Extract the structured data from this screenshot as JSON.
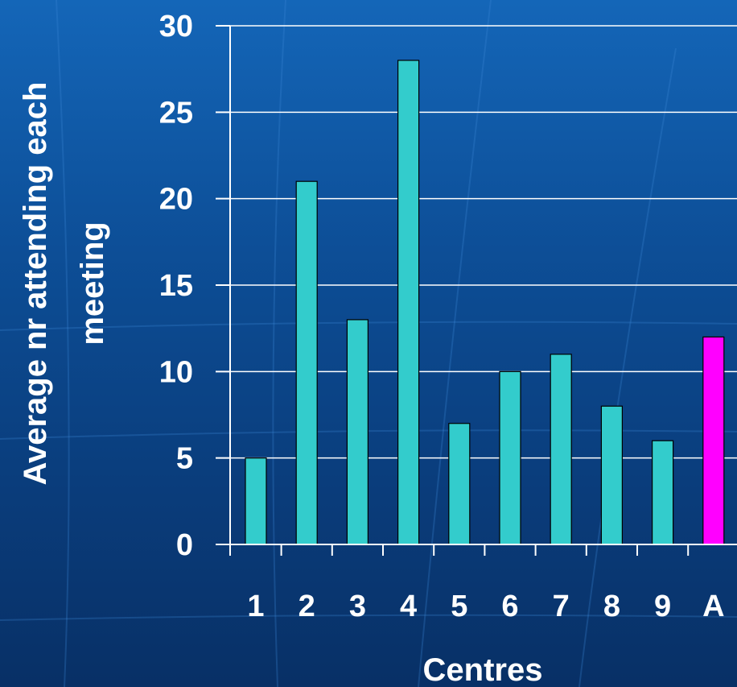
{
  "chart_data": {
    "type": "bar",
    "title": "",
    "xlabel": "Centres",
    "ylabel": [
      "Average nr attending each",
      "meeting"
    ],
    "categories": [
      "1",
      "2",
      "3",
      "4",
      "5",
      "6",
      "7",
      "8",
      "9",
      "A"
    ],
    "values": [
      5,
      21,
      13,
      28,
      7,
      10,
      11,
      8,
      6,
      12
    ],
    "bar_colors": [
      "#33cccc",
      "#33cccc",
      "#33cccc",
      "#33cccc",
      "#33cccc",
      "#33cccc",
      "#33cccc",
      "#33cccc",
      "#33cccc",
      "#ff00ff"
    ],
    "ylim": [
      0,
      30
    ],
    "yticks": [
      0,
      5,
      10,
      15,
      20,
      25,
      30
    ],
    "grid": true
  },
  "colors": {
    "bar": "#33cccc",
    "highlight_bar": "#ff00ff",
    "gridline": "#ffffff",
    "text": "#ffffff"
  }
}
